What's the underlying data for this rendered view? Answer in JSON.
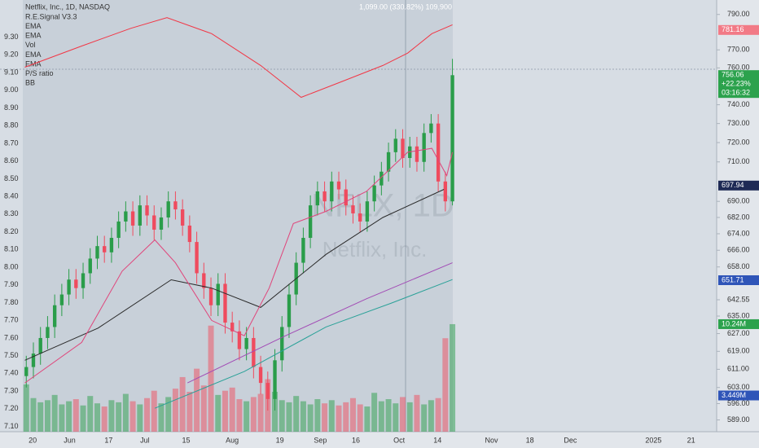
{
  "chart_data": {
    "type": "candlestick",
    "title": "Netflix, Inc., 1D, NASDAQ",
    "indicators": [
      "R.E.Signal V3.3",
      "EMA",
      "EMA",
      "Vol",
      "EMA",
      "EMA",
      "P/S ratio",
      "BB"
    ],
    "status": "1,099.00 (330.82%) 109,900",
    "watermark": "NFLX, 1D",
    "watermark_subtitle": "Netflix, Inc.",
    "up_color": "#2a9d4a",
    "down_color": "#ef4b5e",
    "log": true,
    "ylim": [
      584,
      798.3
    ],
    "yticks": [
      {
        "value": 790,
        "label": "790.00"
      },
      {
        "value": 770,
        "label": "770.00"
      },
      {
        "value": 760,
        "label": "760.00"
      },
      {
        "value": 740,
        "label": "740.00"
      },
      {
        "value": 730,
        "label": "730.00"
      },
      {
        "value": 720,
        "label": "720.00"
      },
      {
        "value": 710,
        "label": "710.00"
      },
      {
        "value": 690,
        "label": "690.00"
      },
      {
        "value": 682,
        "label": "682.00"
      },
      {
        "value": 674,
        "label": "674.00"
      },
      {
        "value": 666,
        "label": "666.00"
      },
      {
        "value": 658,
        "label": "658.00"
      },
      {
        "value": 642.55,
        "label": "642.55"
      },
      {
        "value": 635,
        "label": "635.00"
      },
      {
        "value": 627,
        "label": "627.00"
      },
      {
        "value": 619,
        "label": "619.00"
      },
      {
        "value": 611,
        "label": "611.00"
      },
      {
        "value": 603,
        "label": "603.00"
      },
      {
        "value": 596,
        "label": "596.00"
      },
      {
        "value": 589,
        "label": "589.00"
      }
    ],
    "y2lim": [
      7.07,
      9.51
    ],
    "y2ticks": [
      {
        "value": 9.3,
        "label": "9.30"
      },
      {
        "value": 9.2,
        "label": "9.20"
      },
      {
        "value": 9.1,
        "label": "9.10"
      },
      {
        "value": 9.0,
        "label": "9.00"
      },
      {
        "value": 8.9,
        "label": "8.90"
      },
      {
        "value": 8.8,
        "label": "8.80"
      },
      {
        "value": 8.7,
        "label": "8.70"
      },
      {
        "value": 8.6,
        "label": "8.60"
      },
      {
        "value": 8.5,
        "label": "8.50"
      },
      {
        "value": 8.4,
        "label": "8.40"
      },
      {
        "value": 8.3,
        "label": "8.30"
      },
      {
        "value": 8.2,
        "label": "8.20"
      },
      {
        "value": 8.1,
        "label": "8.10"
      },
      {
        "value": 8.0,
        "label": "8.00"
      },
      {
        "value": 7.9,
        "label": "7.90"
      },
      {
        "value": 7.8,
        "label": "7.80"
      },
      {
        "value": 7.7,
        "label": "7.70"
      },
      {
        "value": 7.6,
        "label": "7.60"
      },
      {
        "value": 7.5,
        "label": "7.50"
      },
      {
        "value": 7.4,
        "label": "7.40"
      },
      {
        "value": 7.3,
        "label": "7.30"
      },
      {
        "value": 7.2,
        "label": "7.20"
      },
      {
        "value": 7.1,
        "label": "7.10"
      }
    ],
    "xlim": [
      -3.7,
      97.2
    ],
    "xticks": [
      {
        "value": 0.9,
        "label": "20"
      },
      {
        "value": 6.1,
        "label": "Jun"
      },
      {
        "value": 11.6,
        "label": "17"
      },
      {
        "value": 16.7,
        "label": "Jul"
      },
      {
        "value": 22.5,
        "label": "15"
      },
      {
        "value": 29.0,
        "label": "Aug"
      },
      {
        "value": 35.7,
        "label": "19"
      },
      {
        "value": 41.4,
        "label": "Sep"
      },
      {
        "value": 46.4,
        "label": "16"
      },
      {
        "value": 52.5,
        "label": "Oct"
      },
      {
        "value": 57.9,
        "label": "14"
      },
      {
        "value": 65.5,
        "label": "Nov"
      },
      {
        "value": 70.9,
        "label": "18"
      },
      {
        "value": 76.6,
        "label": "Dec"
      },
      {
        "value": 88.3,
        "label": "2025"
      },
      {
        "value": 93.6,
        "label": "21"
      }
    ],
    "candles": [
      [
        608,
        617,
        603,
        612
      ],
      [
        612,
        623,
        607,
        618
      ],
      [
        618,
        630,
        613,
        625
      ],
      [
        625,
        635,
        620,
        630
      ],
      [
        630,
        645,
        625,
        640
      ],
      [
        640,
        650,
        635,
        645
      ],
      [
        645,
        657,
        640,
        652
      ],
      [
        652,
        657,
        643,
        648
      ],
      [
        648,
        660,
        643,
        655
      ],
      [
        655,
        667,
        650,
        662
      ],
      [
        662,
        673,
        657,
        668
      ],
      [
        668,
        673,
        660,
        665
      ],
      [
        665,
        677,
        660,
        672
      ],
      [
        672,
        685,
        667,
        680
      ],
      [
        680,
        690,
        675,
        685
      ],
      [
        685,
        690,
        673,
        678
      ],
      [
        678,
        693,
        673,
        688
      ],
      [
        688,
        693,
        678,
        683
      ],
      [
        683,
        688,
        671,
        676
      ],
      [
        676,
        687,
        671,
        682
      ],
      [
        682,
        695,
        677,
        690
      ],
      [
        690,
        695,
        681,
        686
      ],
      [
        686,
        691,
        673,
        678
      ],
      [
        678,
        683,
        665,
        670
      ],
      [
        670,
        675,
        650,
        655
      ],
      [
        655,
        660,
        643,
        648
      ],
      [
        648,
        653,
        635,
        640
      ],
      [
        640,
        655,
        635,
        650
      ],
      [
        650,
        655,
        627,
        632
      ],
      [
        632,
        637,
        623,
        628
      ],
      [
        628,
        633,
        615,
        620
      ],
      [
        620,
        630,
        615,
        625
      ],
      [
        625,
        630,
        607,
        612
      ],
      [
        612,
        617,
        600,
        605
      ],
      [
        605,
        610,
        593,
        598
      ],
      [
        598,
        620,
        593,
        615
      ],
      [
        615,
        635,
        610,
        630
      ],
      [
        630,
        650,
        625,
        645
      ],
      [
        645,
        665,
        640,
        660
      ],
      [
        660,
        677,
        655,
        672
      ],
      [
        672,
        693,
        667,
        688
      ],
      [
        688,
        700,
        683,
        695
      ],
      [
        695,
        700,
        685,
        690
      ],
      [
        690,
        705,
        685,
        700
      ],
      [
        700,
        705,
        691,
        696
      ],
      [
        696,
        701,
        683,
        688
      ],
      [
        688,
        693,
        679,
        684
      ],
      [
        684,
        689,
        675,
        680
      ],
      [
        680,
        695,
        675,
        690
      ],
      [
        690,
        703,
        685,
        698
      ],
      [
        698,
        710,
        693,
        705
      ],
      [
        705,
        720,
        700,
        715
      ],
      [
        715,
        727,
        710,
        722
      ],
      [
        722,
        727,
        707,
        712
      ],
      [
        712,
        723,
        707,
        718
      ],
      [
        718,
        723,
        705,
        710
      ],
      [
        710,
        730,
        705,
        725
      ],
      [
        725,
        735,
        720,
        730
      ],
      [
        730,
        735,
        695,
        700
      ],
      [
        700,
        705,
        685,
        690
      ],
      [
        690,
        765,
        688,
        756
      ]
    ],
    "volumes": [
      4.5,
      3.2,
      2.8,
      3.0,
      3.5,
      2.6,
      2.9,
      3.1,
      2.5,
      3.4,
      2.7,
      2.4,
      3.0,
      2.8,
      3.6,
      2.9,
      2.6,
      3.2,
      3.9,
      2.7,
      3.3,
      4.1,
      5.2,
      3.8,
      6.0,
      4.4,
      10.1,
      3.5,
      3.9,
      4.2,
      3.1,
      2.9,
      3.3,
      3.6,
      5.0,
      3.8,
      3.0,
      2.8,
      3.4,
      2.9,
      2.6,
      3.1,
      2.7,
      3.0,
      2.5,
      2.8,
      3.2,
      2.6,
      2.4,
      3.7,
      2.9,
      3.1,
      2.7,
      3.3,
      2.8,
      3.5,
      2.6,
      3.0,
      3.2,
      8.9,
      10.24
    ],
    "vlim": [
      0,
      41.1
    ],
    "series": [
      {
        "name": "EMA",
        "color": "#2b2b2b",
        "x": [
          -0.2,
          10.1,
          20.4,
          26.1,
          33,
          42.2,
          50.2,
          58.8
        ],
        "values": [
          615,
          629.5,
          651.9,
          648,
          639,
          664,
          682,
          696
        ]
      },
      {
        "name": "EMA",
        "color": "#e0457b",
        "x": [
          -0.2,
          7.8,
          13.5,
          18.1,
          21,
          26.1,
          30.7,
          34.2,
          37.6,
          42.2,
          47.9,
          53.7,
          57.1,
          59.2,
          60
        ],
        "values": [
          605,
          623,
          656,
          671,
          660,
          633,
          626,
          648,
          679,
          685,
          695,
          715,
          717,
          703,
          715
        ]
      },
      {
        "name": "EMA",
        "color": "#2aa198",
        "x": [
          18.1,
          30.7,
          42.2,
          51.4,
          60
        ],
        "values": [
          594,
          610,
          630,
          641,
          652
        ]
      },
      {
        "name": "EMA",
        "color": "#a24bb5",
        "x": [
          22.7,
          36.5,
          47.9,
          60
        ],
        "values": [
          605,
          626,
          643,
          660
        ]
      },
      {
        "name": "P/S ratio",
        "color": "#f23645",
        "axis": "y2",
        "x": [
          -0.2,
          7.8,
          14.7,
          19.8,
          26.1,
          33,
          38.7,
          44.5,
          50.2,
          53.7,
          57.1,
          60
        ],
        "values": [
          9.13,
          9.25,
          9.35,
          9.41,
          9.32,
          9.14,
          8.96,
          9.05,
          9.14,
          9.21,
          9.32,
          9.37
        ]
      }
    ],
    "price_labels": [
      {
        "value": 781.16,
        "label": "781.16",
        "color": "#f27a86"
      },
      {
        "value": 697.94,
        "label": "697.94",
        "color": "#1e2a55"
      },
      {
        "value": 651.71,
        "label": "651.71",
        "color": "#2f55b8"
      }
    ],
    "last_price": {
      "value": 756.06,
      "label": "756.06",
      "change": "+22.23%",
      "countdown": "03:16:32",
      "color": "#2ca24d"
    },
    "volume_labels": [
      {
        "value": 10.24,
        "label": "10.24M",
        "color": "#2ca24d"
      },
      {
        "value": 3.449,
        "label": "3.449M",
        "color": "#2f55b8"
      }
    ]
  }
}
